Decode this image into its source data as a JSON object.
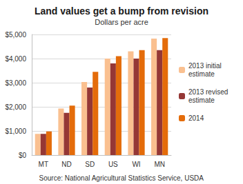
{
  "chart_data": {
    "type": "bar",
    "title": "Land values get a bump from revision",
    "subtitle": "Dollars per acre",
    "annotations": [
      "Source: National Agricultural Statistics Service, USDA"
    ],
    "categories": [
      "MT",
      "ND",
      "SD",
      "US",
      "WI",
      "MN"
    ],
    "series": [
      {
        "name": "2013 initial estimate",
        "color": "#fac090",
        "values": [
          880,
          1930,
          3030,
          4000,
          4300,
          4830
        ]
      },
      {
        "name": "2013 revised estimate",
        "color": "#953735",
        "values": [
          880,
          1750,
          2800,
          3800,
          4000,
          4350
        ]
      },
      {
        "name": "2014",
        "color": "#e46c0a",
        "values": [
          980,
          2050,
          3450,
          4100,
          4350,
          4850
        ]
      }
    ],
    "ylim": [
      0,
      5000
    ],
    "yticks": [
      {
        "value": 0,
        "label": "$0"
      },
      {
        "value": 1000,
        "label": "$1,000"
      },
      {
        "value": 2000,
        "label": "$2,000"
      },
      {
        "value": 3000,
        "label": "$3,000"
      },
      {
        "value": 4000,
        "label": "$4,000"
      },
      {
        "value": 5000,
        "label": "$5,000"
      }
    ],
    "grid": true,
    "legend": "right"
  }
}
